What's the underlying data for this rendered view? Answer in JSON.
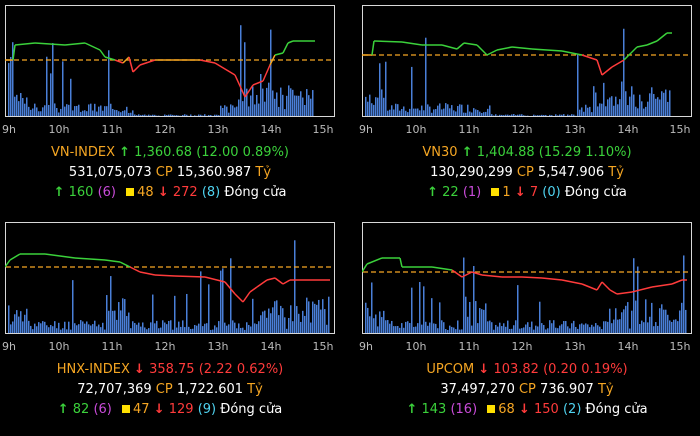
{
  "x_ticks": [
    "9h",
    "10h",
    "11h",
    "12h",
    "13h",
    "14h",
    "15h"
  ],
  "colors": {
    "up": "#3bd13b",
    "down": "#ff3b3b",
    "ref": "#f5a623",
    "volume": "#4a7fd8",
    "frame": "#d8d8d8"
  },
  "panels": [
    {
      "name": "VN-INDEX",
      "value": "1,360.68",
      "change": "(12.00 0.89%)",
      "direction": "up",
      "volume": "531,075,073",
      "cp_label": "CP",
      "turnover": "15,360.987",
      "unit": "Tỷ",
      "advancers": "160",
      "ceiling": "(6)",
      "unchanged": "48",
      "decliners": "272",
      "floor": "(8)",
      "status": "Đóng cửa"
    },
    {
      "name": "VN30",
      "value": "1,404.88",
      "change": "(15.29 1.10%)",
      "direction": "up",
      "volume": "130,290,299",
      "cp_label": "CP",
      "turnover": "5,547.906",
      "unit": "Tỷ",
      "advancers": "22",
      "ceiling": "(1)",
      "unchanged": "1",
      "decliners": "7",
      "floor": "(0)",
      "status": "Đóng cửa"
    },
    {
      "name": "HNX-INDEX",
      "value": "358.75",
      "change": "(2.22 0.62%)",
      "direction": "down",
      "volume": "72,707,369",
      "cp_label": "CP",
      "turnover": "1,722.601",
      "unit": "Tỷ",
      "advancers": "82",
      "ceiling": "(6)",
      "unchanged": "47",
      "decliners": "129",
      "floor": "(9)",
      "status": "Đóng cửa"
    },
    {
      "name": "UPCOM",
      "value": "103.82",
      "change": "(0.20 0.19%)",
      "direction": "down",
      "volume": "37,497,270",
      "cp_label": "CP",
      "turnover": "736.907",
      "unit": "Tỷ",
      "advancers": "143",
      "ceiling": "(16)",
      "unchanged": "68",
      "decliners": "150",
      "floor": "(2)",
      "status": "Đóng cửa"
    }
  ]
}
